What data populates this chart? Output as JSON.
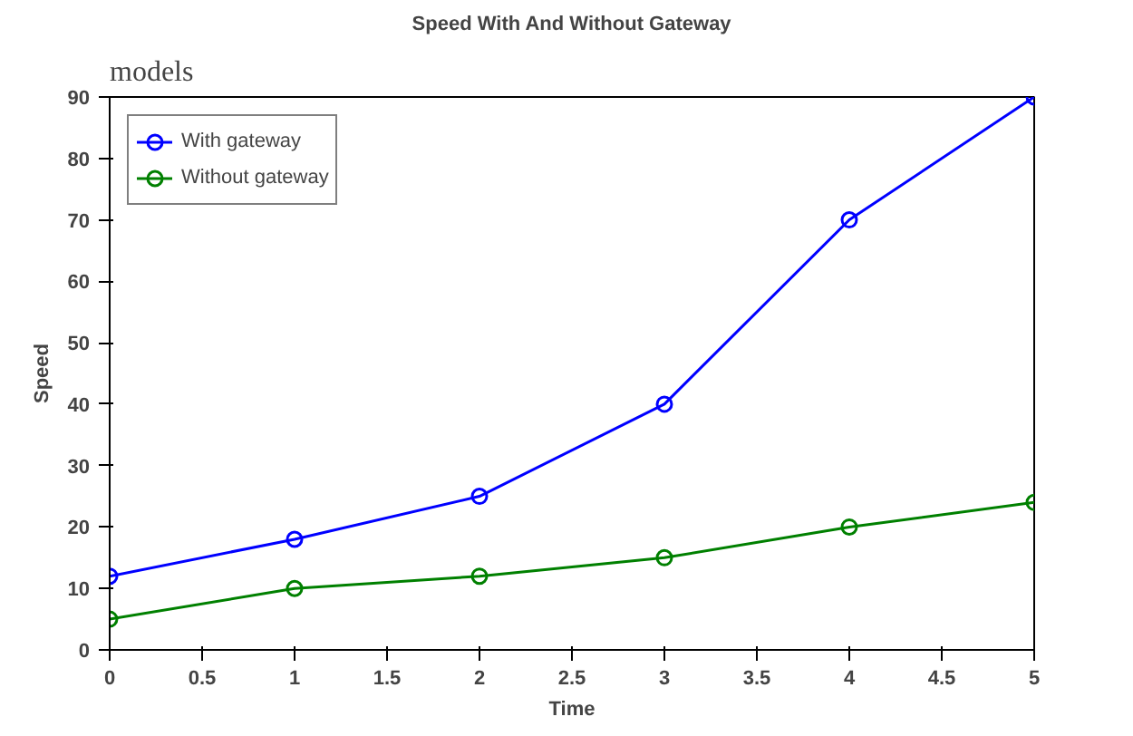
{
  "chart_data": {
    "type": "line",
    "title": "Speed With And Without Gateway",
    "xlabel": "Time",
    "ylabel": "Speed",
    "annotations": [
      "models"
    ],
    "x": [
      0,
      1,
      2,
      3,
      4,
      5
    ],
    "series": [
      {
        "name": "With gateway",
        "color": "#0000ff",
        "values": [
          12,
          18,
          25,
          40,
          70,
          90
        ]
      },
      {
        "name": "Without gateway",
        "color": "#008000",
        "values": [
          5,
          10,
          12,
          15,
          20,
          24
        ]
      }
    ],
    "xlim": [
      0,
      5
    ],
    "xticks": [
      0,
      0.5,
      1,
      1.5,
      2,
      2.5,
      3,
      3.5,
      4,
      4.5,
      5
    ],
    "ylim": [
      0,
      90
    ],
    "yticks": [
      0,
      10,
      20,
      30,
      40,
      50,
      60,
      70,
      80,
      90
    ],
    "grid": false,
    "legend": "top left",
    "marker": "circle",
    "line_style": "solid"
  }
}
